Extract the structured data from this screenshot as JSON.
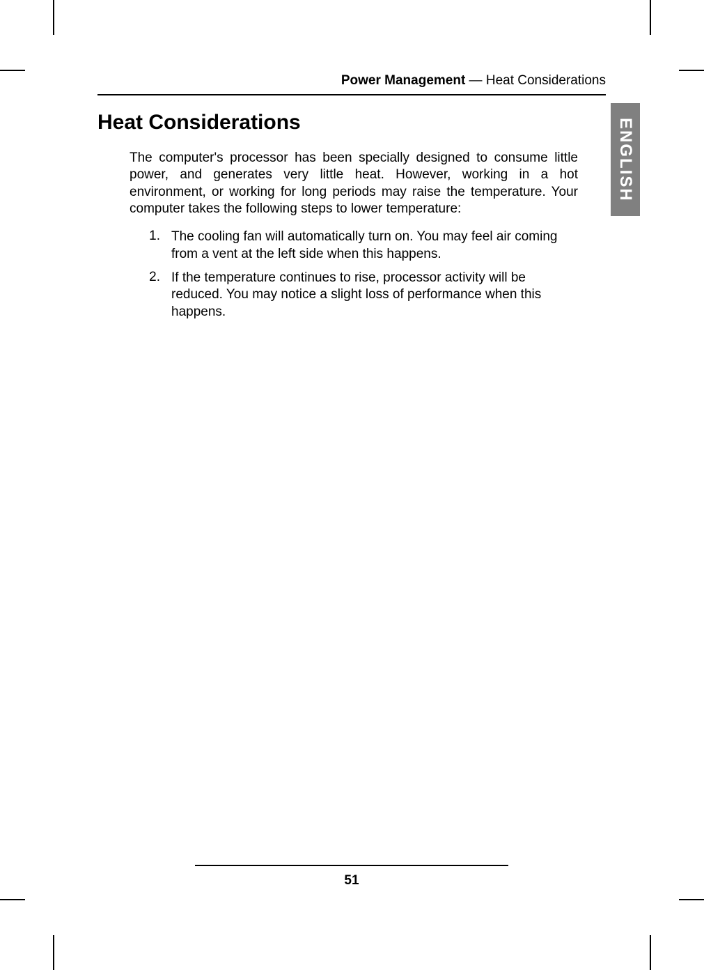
{
  "header": {
    "chapter": "Power Management",
    "separator": " — ",
    "section": "Heat Considerations"
  },
  "side_tab": "ENGLISH",
  "title": "Heat Considerations",
  "paragraph": "The computer's processor has been specially designed to consume little power, and generates very little heat. However, working in a hot environment, or working for long periods may raise the temperature. Your computer takes the following steps to lower temperature:",
  "list": [
    {
      "num": "1.",
      "text": "The cooling fan will automatically turn on. You may feel air coming from a vent at the left side when this happens."
    },
    {
      "num": "2.",
      "text": "If the temperature continues to rise, processor activity will be reduced. You may notice a slight loss of performance when this happens."
    }
  ],
  "page_number": "51"
}
